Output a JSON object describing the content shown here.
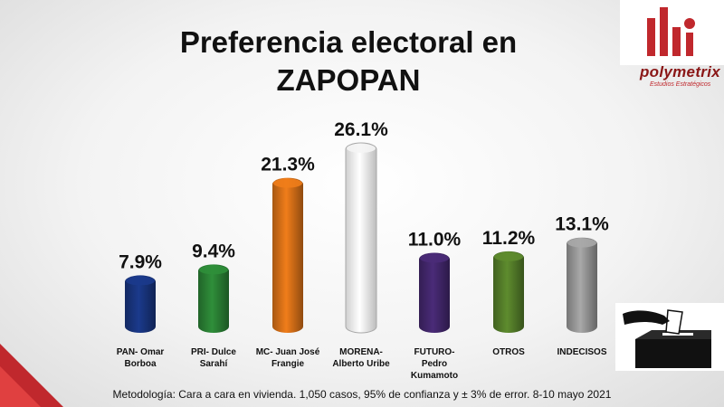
{
  "title_line1": "Preferencia electoral en",
  "title_line2": "ZAPOPAN",
  "logo": {
    "name": "polymetrix",
    "tagline": "Estudios Estratégicos"
  },
  "footnote": "Metodología: Cara a cara en vivienda. 1,050 casos, 95% de confianza y ± 3% de error. 8-10 mayo 2021",
  "colors": {
    "pan": "#1b3a8c",
    "pri": "#2f8f3a",
    "mc": "#f07d1a",
    "morena": "#ffffff",
    "futuro": "#4a2b78",
    "otros": "#5e8c2e",
    "indecisos": "#a9a9a9",
    "logo_red": "#c0282d"
  },
  "chart_data": {
    "type": "bar",
    "categories": [
      [
        "PAN- Omar",
        "Borboa"
      ],
      [
        "PRI- Dulce",
        "Sarahí"
      ],
      [
        "MC- Juan José",
        "Frangie"
      ],
      [
        "MORENA-",
        "Alberto Uribe"
      ],
      [
        "FUTURO-",
        "Pedro",
        "Kumamoto"
      ],
      [
        "OTROS"
      ],
      [
        "INDECISOS"
      ]
    ],
    "values": [
      7.9,
      9.4,
      21.3,
      26.1,
      11.0,
      11.2,
      13.1
    ],
    "labels": [
      "7.9%",
      "9.4%",
      "21.3%",
      "26.1%",
      "11.0%",
      "11.2%",
      "13.1%"
    ],
    "bar_colors": [
      "#1b3a8c",
      "#2f8f3a",
      "#f07d1a",
      "#ffffff",
      "#4a2b78",
      "#5e8c2e",
      "#a9a9a9"
    ],
    "ylim": [
      0,
      26.1
    ]
  }
}
